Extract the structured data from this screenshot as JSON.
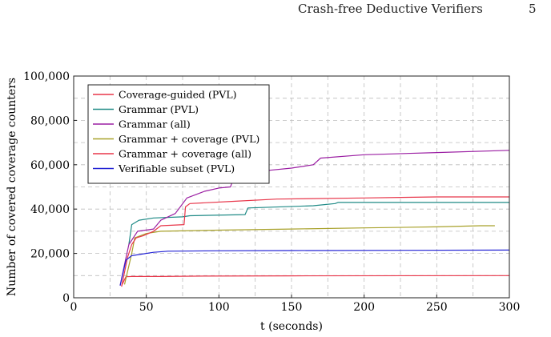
{
  "header": {
    "running_title": "Crash-free Deductive Verifiers",
    "page_number": "5"
  },
  "chart_data": {
    "type": "line",
    "title": "",
    "xlabel": "t (seconds)",
    "ylabel": "Number of covered coverage counters",
    "xlim": [
      0,
      300
    ],
    "ylim": [
      0,
      100000
    ],
    "x_ticks": [
      0,
      50,
      100,
      150,
      200,
      250,
      300
    ],
    "x_tick_labels": [
      "0",
      "50",
      "100",
      "150",
      "200",
      "250",
      "300"
    ],
    "y_ticks": [
      0,
      20000,
      40000,
      60000,
      80000,
      100000
    ],
    "y_tick_labels": [
      "0",
      "20,000",
      "40,000",
      "60,000",
      "80,000",
      "100,000"
    ],
    "grid": true,
    "legend_position": "top-left",
    "series": [
      {
        "name": "Coverage-guided (PVL)",
        "color": "#e8364a",
        "points": [
          [
            33,
            5500
          ],
          [
            36,
            9500
          ],
          [
            40,
            9600
          ],
          [
            60,
            9600
          ],
          [
            90,
            9800
          ],
          [
            150,
            9900
          ],
          [
            300,
            10000
          ]
        ]
      },
      {
        "name": "Grammar (PVL)",
        "color": "#1f8a86",
        "points": [
          [
            38,
            24000
          ],
          [
            40,
            33000
          ],
          [
            45,
            35000
          ],
          [
            55,
            36000
          ],
          [
            75,
            36500
          ],
          [
            80,
            37000
          ],
          [
            118,
            37500
          ],
          [
            120,
            40500
          ],
          [
            165,
            41500
          ],
          [
            180,
            42500
          ],
          [
            182,
            43000
          ],
          [
            300,
            43000
          ]
        ]
      },
      {
        "name": "Grammar (all)",
        "color": "#9b1fa3",
        "points": [
          [
            32,
            5500
          ],
          [
            35,
            15000
          ],
          [
            38,
            24000
          ],
          [
            44,
            30000
          ],
          [
            55,
            31000
          ],
          [
            60,
            35000
          ],
          [
            70,
            38000
          ],
          [
            78,
            45000
          ],
          [
            90,
            48000
          ],
          [
            100,
            49500
          ],
          [
            108,
            50000
          ],
          [
            109,
            52000
          ],
          [
            135,
            57500
          ],
          [
            150,
            58500
          ],
          [
            165,
            60000
          ],
          [
            170,
            63000
          ],
          [
            200,
            64500
          ],
          [
            250,
            65500
          ],
          [
            300,
            66500
          ]
        ]
      },
      {
        "name": "Grammar + coverage (PVL)",
        "color": "#a8a12a",
        "points": [
          [
            35,
            6000
          ],
          [
            40,
            20000
          ],
          [
            42,
            27000
          ],
          [
            50,
            29000
          ],
          [
            60,
            30000
          ],
          [
            100,
            30500
          ],
          [
            150,
            31000
          ],
          [
            200,
            31500
          ],
          [
            250,
            32000
          ],
          [
            280,
            32500
          ],
          [
            290,
            32500
          ]
        ]
      },
      {
        "name": "Grammar + coverage (all)",
        "color": "#e8364a",
        "points": [
          [
            33,
            5000
          ],
          [
            37,
            18000
          ],
          [
            40,
            24000
          ],
          [
            43,
            27000
          ],
          [
            48,
            28000
          ],
          [
            55,
            30000
          ],
          [
            60,
            32500
          ],
          [
            76,
            33000
          ],
          [
            77,
            41000
          ],
          [
            80,
            42500
          ],
          [
            110,
            43500
          ],
          [
            140,
            44500
          ],
          [
            200,
            45000
          ],
          [
            250,
            45500
          ],
          [
            300,
            45500
          ]
        ]
      },
      {
        "name": "Verifiable subset (PVL)",
        "color": "#2323d4",
        "points": [
          [
            32,
            5500
          ],
          [
            36,
            17000
          ],
          [
            40,
            19000
          ],
          [
            45,
            19500
          ],
          [
            55,
            20500
          ],
          [
            65,
            21000
          ],
          [
            100,
            21200
          ],
          [
            150,
            21300
          ],
          [
            300,
            21500
          ]
        ]
      }
    ]
  }
}
